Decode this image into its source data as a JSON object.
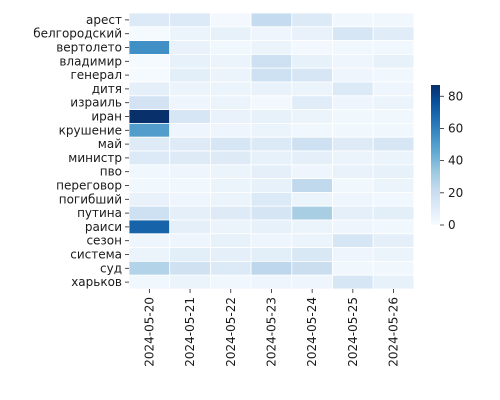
{
  "chart_data": {
    "type": "heatmap",
    "title": "",
    "xlabel": "",
    "ylabel": "",
    "x_categories": [
      "2024-05-20",
      "2024-05-21",
      "2024-05-22",
      "2024-05-23",
      "2024-05-24",
      "2024-05-25",
      "2024-05-26"
    ],
    "y_categories": [
      "арест",
      "белгородский",
      "вертолето",
      "владимир",
      "генерал",
      "дитя",
      "израиль",
      "иран",
      "крушение",
      "май",
      "министр",
      "пво",
      "переговор",
      "погибший",
      "путина",
      "раиси",
      "сезон",
      "система",
      "суд",
      "харьков"
    ],
    "values": [
      [
        12,
        12,
        2,
        22,
        12,
        3,
        3
      ],
      [
        1,
        5,
        7,
        4,
        6,
        14,
        10
      ],
      [
        55,
        6,
        3,
        5,
        2,
        3,
        3
      ],
      [
        1,
        7,
        5,
        18,
        7,
        4,
        7
      ],
      [
        1,
        9,
        5,
        18,
        14,
        4,
        3
      ],
      [
        8,
        5,
        5,
        6,
        5,
        12,
        4
      ],
      [
        16,
        4,
        5,
        2,
        10,
        4,
        5
      ],
      [
        87,
        14,
        6,
        7,
        5,
        3,
        3
      ],
      [
        50,
        4,
        4,
        5,
        3,
        3,
        3
      ],
      [
        11,
        11,
        14,
        12,
        18,
        11,
        14
      ],
      [
        12,
        11,
        11,
        7,
        8,
        5,
        5
      ],
      [
        3,
        4,
        5,
        8,
        4,
        6,
        7
      ],
      [
        3,
        3,
        5,
        7,
        23,
        3,
        5
      ],
      [
        6,
        4,
        5,
        12,
        5,
        4,
        3
      ],
      [
        18,
        8,
        11,
        15,
        30,
        8,
        9
      ],
      [
        70,
        8,
        5,
        7,
        5,
        4,
        3
      ],
      [
        4,
        4,
        7,
        4,
        5,
        14,
        8
      ],
      [
        5,
        9,
        8,
        9,
        13,
        4,
        5
      ],
      [
        27,
        17,
        12,
        24,
        20,
        3,
        3
      ],
      [
        3,
        5,
        3,
        4,
        4,
        14,
        7
      ]
    ],
    "colorbar": {
      "min": 0,
      "max": 87,
      "ticks": [
        0,
        20,
        40,
        60,
        80
      ]
    },
    "colormap": "Blues",
    "grid_lines_color": "#ffffff",
    "legend": "colorbar-right"
  }
}
